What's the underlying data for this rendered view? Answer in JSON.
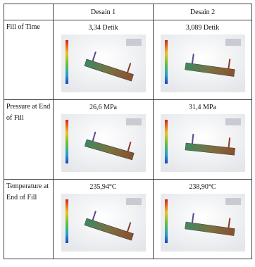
{
  "table": {
    "columns": [
      "Desain 1",
      "Desain 2"
    ],
    "rows": [
      {
        "label": "Fill of Time",
        "values": [
          "3,34 Detik",
          "3,089 Detik"
        ]
      },
      {
        "label": "Pressure at End of Fill",
        "values": [
          "26,6 MPa",
          "31,4 MPa"
        ]
      },
      {
        "label": "Temperature at End of Fill",
        "values": [
          "235,94°C",
          "238,90°C"
        ]
      }
    ]
  }
}
